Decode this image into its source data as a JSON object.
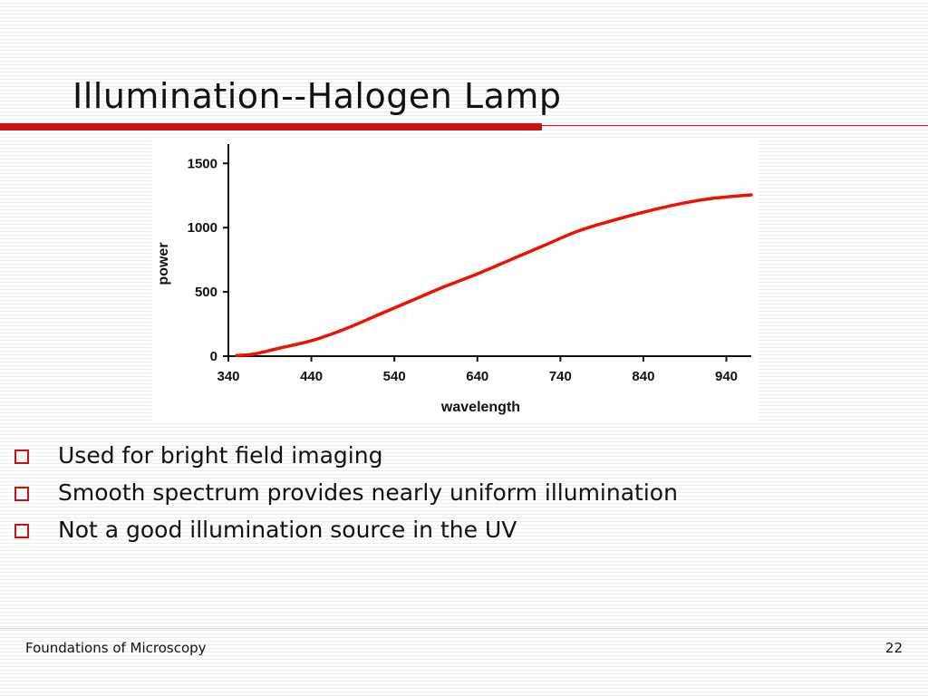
{
  "slide": {
    "title": "Illumination--Halogen Lamp",
    "accent_color": "#cc1111"
  },
  "bullets": [
    "Used for bright field imaging",
    "Smooth spectrum provides nearly uniform illumination",
    "Not a good illumination source in the UV"
  ],
  "footer": {
    "left": "Foundations of Microscopy",
    "page_number": "22"
  },
  "chart_data": {
    "type": "line",
    "xlabel": "wavelength",
    "ylabel": "power",
    "xlim": [
      340,
      970
    ],
    "ylim": [
      0,
      1650
    ],
    "x_ticks": [
      "340",
      "440",
      "540",
      "640",
      "740",
      "840",
      "940"
    ],
    "y_ticks": [
      "0",
      "500",
      "1000",
      "1500"
    ],
    "grid": false,
    "series": [
      {
        "color": "#ee1100",
        "x": [
          350,
          370,
          400,
          440,
          480,
          520,
          560,
          600,
          640,
          680,
          720,
          760,
          800,
          840,
          880,
          920,
          960,
          970
        ],
        "y": [
          5,
          15,
          60,
          120,
          210,
          320,
          430,
          540,
          640,
          750,
          860,
          970,
          1050,
          1120,
          1180,
          1225,
          1250,
          1255
        ]
      }
    ]
  }
}
